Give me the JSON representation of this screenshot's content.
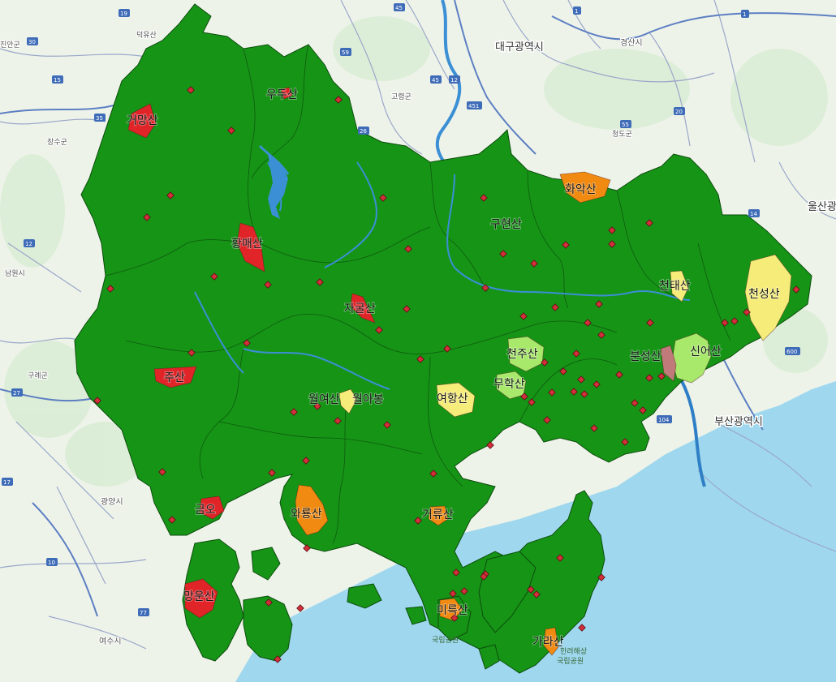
{
  "colors": {
    "sea": "#9fd8ee",
    "land": "#eef3ea",
    "region": "#169416",
    "border": "#0c4d0c",
    "river": "#3b8fd4",
    "point": "#d32f3a",
    "high": "#e02428",
    "medium": "#f08a10",
    "low": "#f6ec7a",
    "lowest": "#a8e86a",
    "muted": "#c07a7a"
  },
  "peaks": [
    {
      "id": "geomang",
      "label": "거망산",
      "level": "high"
    },
    {
      "id": "umu",
      "label": "우두산",
      "level": "high"
    },
    {
      "id": "hwangmae",
      "label": "황매산",
      "level": "high"
    },
    {
      "id": "jagul",
      "label": "자굴산",
      "level": "high"
    },
    {
      "id": "hwaak",
      "label": "화악산",
      "level": "medium"
    },
    {
      "id": "guhyeon",
      "label": "구현산",
      "level": "none"
    },
    {
      "id": "cheontae",
      "label": "천태산",
      "level": "low"
    },
    {
      "id": "cheonseong",
      "label": "천성산",
      "level": "low"
    },
    {
      "id": "sineo",
      "label": "신어산",
      "level": "lowest"
    },
    {
      "id": "bunseong",
      "label": "분성산",
      "level": "muted"
    },
    {
      "id": "cheonju",
      "label": "천주산",
      "level": "lowest"
    },
    {
      "id": "muhak",
      "label": "무학산",
      "level": "lowest"
    },
    {
      "id": "yeohang",
      "label": "여항산",
      "level": "low"
    },
    {
      "id": "woryeo",
      "label": "월여산",
      "level": "none"
    },
    {
      "id": "wolabong",
      "label": "월아봉",
      "level": "low"
    },
    {
      "id": "jusan",
      "label": "주산",
      "level": "high"
    },
    {
      "id": "geumo",
      "label": "금오",
      "level": "high"
    },
    {
      "id": "waryong",
      "label": "와룡산",
      "level": "medium"
    },
    {
      "id": "georyu",
      "label": "거류산",
      "level": "medium"
    },
    {
      "id": "mangun",
      "label": "망운산",
      "level": "high"
    },
    {
      "id": "mireuk",
      "label": "미륵산",
      "level": "medium"
    },
    {
      "id": "gara",
      "label": "가라산",
      "level": "medium"
    }
  ],
  "cities": [
    {
      "id": "daegu",
      "label": "대구광역시"
    },
    {
      "id": "busan",
      "label": "부산광역시"
    },
    {
      "id": "ulsan",
      "label": "울산광역"
    },
    {
      "id": "gyeongsan",
      "label": "경산시"
    },
    {
      "id": "gwangyang",
      "label": "광양시"
    },
    {
      "id": "yeosu",
      "label": "여수시"
    }
  ],
  "towns": [
    {
      "id": "deogyu",
      "label": "덕유산"
    },
    {
      "id": "jinan",
      "label": "진안군"
    },
    {
      "id": "jangsu",
      "label": "장수군"
    },
    {
      "id": "namwon",
      "label": "남원시"
    },
    {
      "id": "gurye",
      "label": "구례군"
    },
    {
      "id": "goryeong",
      "label": "고령군"
    },
    {
      "id": "cheongdo",
      "label": "청도군"
    },
    {
      "id": "park1",
      "label": "국립공원"
    },
    {
      "id": "park2",
      "label": "국립공원"
    },
    {
      "id": "park3",
      "label": "한려해상"
    }
  ],
  "shields": [
    {
      "id": "s45a",
      "label": "45"
    },
    {
      "id": "s45b",
      "label": "45"
    },
    {
      "id": "s12a",
      "label": "12"
    },
    {
      "id": "s451",
      "label": "451"
    },
    {
      "id": "s55",
      "label": "55"
    },
    {
      "id": "s20",
      "label": "20"
    },
    {
      "id": "s1a",
      "label": "1"
    },
    {
      "id": "s1b",
      "label": "1"
    },
    {
      "id": "s35",
      "label": "35"
    },
    {
      "id": "s19",
      "label": "19"
    },
    {
      "id": "s30",
      "label": "30"
    },
    {
      "id": "s15",
      "label": "15"
    },
    {
      "id": "s12b",
      "label": "12"
    },
    {
      "id": "s27",
      "label": "27"
    },
    {
      "id": "s17",
      "label": "17"
    },
    {
      "id": "s77",
      "label": "77"
    },
    {
      "id": "s10",
      "label": "10"
    },
    {
      "id": "s14",
      "label": "14"
    },
    {
      "id": "s104",
      "label": "104"
    },
    {
      "id": "s600",
      "label": "600"
    },
    {
      "id": "s59",
      "label": "59"
    },
    {
      "id": "s26",
      "label": "26"
    }
  ]
}
